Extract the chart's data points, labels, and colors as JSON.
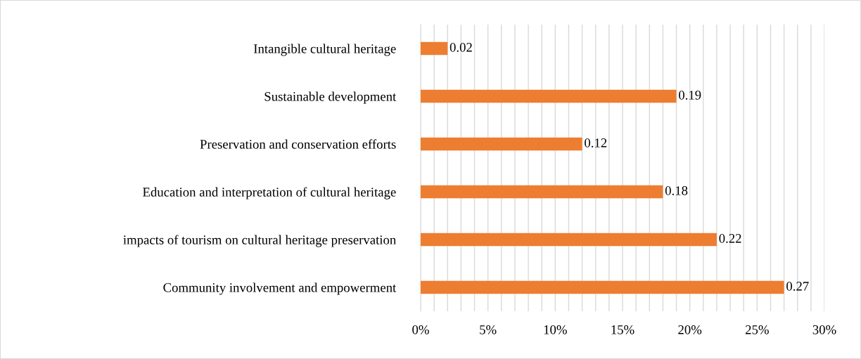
{
  "chart_data": {
    "type": "bar",
    "orientation": "horizontal",
    "categories": [
      "Intangible cultural heritage",
      "Sustainable development",
      "Preservation and conservation efforts",
      "Education and interpretation of cultural heritage",
      "impacts of tourism on cultural heritage preservation",
      "Community involvement and empowerment"
    ],
    "values": [
      0.02,
      0.19,
      0.12,
      0.18,
      0.22,
      0.27
    ],
    "color": "#ed7d31",
    "xlim": [
      0,
      0.3
    ],
    "xticks": [
      {
        "value": 0,
        "label": "0%"
      },
      {
        "value": 0.01,
        "label": null
      },
      {
        "value": 0.02,
        "label": null
      },
      {
        "value": 0.03,
        "label": null
      },
      {
        "value": 0.04,
        "label": null
      },
      {
        "value": 0.05,
        "label": "5%"
      },
      {
        "value": 0.06,
        "label": null
      },
      {
        "value": 0.07,
        "label": null
      },
      {
        "value": 0.08,
        "label": null
      },
      {
        "value": 0.09,
        "label": null
      },
      {
        "value": 0.1,
        "label": "10%"
      },
      {
        "value": 0.11,
        "label": null
      },
      {
        "value": 0.12,
        "label": null
      },
      {
        "value": 0.13,
        "label": null
      },
      {
        "value": 0.14,
        "label": null
      },
      {
        "value": 0.15,
        "label": "15%"
      },
      {
        "value": 0.16,
        "label": null
      },
      {
        "value": 0.17,
        "label": null
      },
      {
        "value": 0.18,
        "label": null
      },
      {
        "value": 0.19,
        "label": null
      },
      {
        "value": 0.2,
        "label": "20%"
      },
      {
        "value": 0.21,
        "label": null
      },
      {
        "value": 0.22,
        "label": null
      },
      {
        "value": 0.23,
        "label": null
      },
      {
        "value": 0.24,
        "label": null
      },
      {
        "value": 0.25,
        "label": "25%"
      },
      {
        "value": 0.26,
        "label": null
      },
      {
        "value": 0.27,
        "label": null
      },
      {
        "value": 0.28,
        "label": null
      },
      {
        "value": 0.29,
        "label": null
      },
      {
        "value": 0.3,
        "label": "30%"
      }
    ],
    "grid": "x",
    "data_labels": true
  }
}
